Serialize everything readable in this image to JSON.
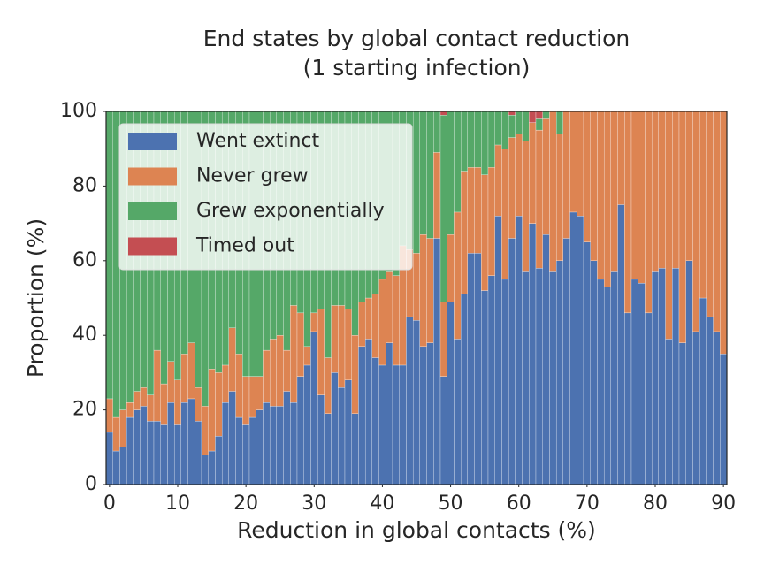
{
  "chart_data": {
    "type": "bar",
    "stacked": true,
    "title": [
      "End states by global contact reduction",
      "(1 starting infection)"
    ],
    "xlabel": "Reduction in global contacts (%)",
    "ylabel": "Proportion (%)",
    "x": [
      0,
      1,
      2,
      3,
      4,
      5,
      6,
      7,
      8,
      9,
      10,
      11,
      12,
      13,
      14,
      15,
      16,
      17,
      18,
      19,
      20,
      21,
      22,
      23,
      24,
      25,
      26,
      27,
      28,
      29,
      30,
      31,
      32,
      33,
      34,
      35,
      36,
      37,
      38,
      39,
      40,
      41,
      42,
      43,
      44,
      45,
      46,
      47,
      48,
      49,
      50,
      51,
      52,
      53,
      54,
      55,
      56,
      57,
      58,
      59,
      60,
      61,
      62,
      63,
      64,
      65,
      66,
      67,
      68,
      69,
      70,
      71,
      72,
      73,
      74,
      75,
      76,
      77,
      78,
      79,
      80,
      81,
      82,
      83,
      84,
      85,
      86,
      87,
      88,
      89,
      90
    ],
    "series": [
      {
        "name": "Went extinct",
        "color": "#4c72b0",
        "values": [
          14,
          9,
          10,
          18,
          20,
          21,
          17,
          17,
          16,
          22,
          16,
          22,
          23,
          17,
          8,
          9,
          13,
          22,
          25,
          18,
          16,
          18,
          20,
          22,
          21,
          21,
          25,
          22,
          29,
          32,
          41,
          24,
          19,
          30,
          26,
          28,
          19,
          37,
          39,
          34,
          32,
          38,
          32,
          32,
          45,
          44,
          37,
          38,
          66,
          29,
          49,
          39,
          51,
          62,
          62,
          52,
          56,
          72,
          55,
          66,
          72,
          57,
          70,
          58,
          67,
          57,
          60,
          66,
          73,
          72,
          65,
          60,
          55,
          53,
          57,
          75,
          46,
          55,
          54,
          46,
          57,
          58,
          39,
          58,
          38,
          60,
          41,
          50,
          45,
          41,
          35
        ]
      },
      {
        "name": "Never grew",
        "color": "#dd8452",
        "values": [
          9,
          9,
          10,
          4,
          5,
          5,
          7,
          19,
          11,
          11,
          12,
          13,
          15,
          9,
          13,
          22,
          17,
          10,
          17,
          17,
          13,
          11,
          9,
          14,
          18,
          19,
          11,
          26,
          17,
          5,
          5,
          23,
          15,
          18,
          22,
          19,
          21,
          12,
          11,
          17,
          23,
          19,
          24,
          32,
          18,
          18,
          30,
          28,
          23,
          20,
          18,
          34,
          33,
          23,
          23,
          31,
          29,
          19,
          35,
          27,
          22,
          35,
          27,
          37,
          31,
          43,
          34,
          34,
          27,
          28,
          35,
          40,
          45,
          47,
          43,
          25,
          54,
          45,
          46,
          54,
          43,
          42,
          61,
          42,
          62,
          40,
          59,
          50,
          55,
          59,
          65
        ]
      },
      {
        "name": "Grew exponentially",
        "color": "#55a868",
        "values": [
          77,
          82,
          80,
          78,
          75,
          74,
          76,
          64,
          73,
          67,
          72,
          65,
          62,
          74,
          79,
          69,
          70,
          68,
          58,
          65,
          71,
          71,
          71,
          64,
          61,
          60,
          64,
          52,
          54,
          63,
          54,
          53,
          66,
          52,
          52,
          53,
          60,
          51,
          50,
          49,
          45,
          43,
          44,
          36,
          37,
          38,
          33,
          34,
          11,
          50,
          33,
          27,
          16,
          15,
          15,
          17,
          15,
          9,
          10,
          6,
          6,
          8,
          0,
          3,
          2,
          0,
          6,
          0,
          0,
          0,
          0,
          0,
          0,
          0,
          0,
          0,
          0,
          0,
          0,
          0,
          0,
          0,
          0,
          0,
          0,
          0,
          0,
          0,
          0,
          0,
          0
        ]
      },
      {
        "name": "Timed out",
        "color": "#c44e52",
        "values": [
          0,
          0,
          0,
          0,
          0,
          0,
          0,
          0,
          0,
          0,
          0,
          0,
          0,
          0,
          0,
          0,
          0,
          0,
          0,
          0,
          0,
          0,
          0,
          0,
          0,
          0,
          0,
          0,
          0,
          0,
          0,
          0,
          0,
          0,
          0,
          0,
          0,
          0,
          0,
          0,
          0,
          0,
          0,
          0,
          0,
          0,
          0,
          0,
          0,
          1,
          0,
          0,
          0,
          0,
          0,
          0,
          0,
          0,
          0,
          1,
          0,
          0,
          3,
          2,
          0,
          0,
          0,
          0,
          0,
          0,
          0,
          0,
          0,
          0,
          0,
          0,
          0,
          0,
          0,
          0,
          0,
          0,
          0,
          0,
          0,
          0,
          0,
          0,
          0,
          0,
          0
        ]
      }
    ],
    "xlim": [
      -0.5,
      90.5
    ],
    "xticks": [
      0,
      10,
      20,
      30,
      40,
      50,
      60,
      70,
      80,
      90
    ],
    "ylim": [
      0,
      100
    ],
    "yticks": [
      0,
      20,
      40,
      60,
      80,
      100
    ],
    "legend": "upper left",
    "grid": false
  }
}
